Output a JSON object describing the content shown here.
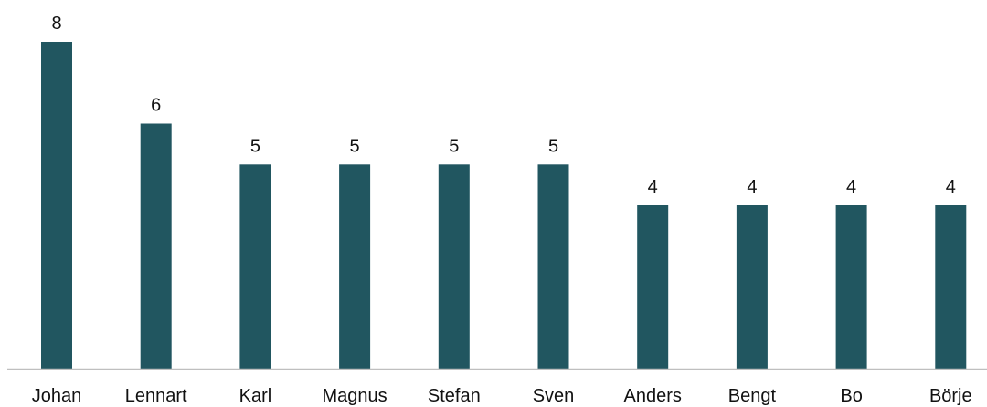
{
  "chart_data": {
    "type": "bar",
    "title": "",
    "xlabel": "",
    "ylabel": "",
    "categories": [
      "Johan",
      "Lennart",
      "Karl",
      "Magnus",
      "Stefan",
      "Sven",
      "Anders",
      "Bengt",
      "Bo",
      "Börje"
    ],
    "values": [
      8,
      6,
      5,
      5,
      5,
      5,
      4,
      4,
      4,
      4
    ],
    "ylim": [
      0,
      8
    ],
    "grid": false,
    "legend": "none",
    "data_labels": true,
    "bar_color": "#215660",
    "axis_color": "#bfbfbf"
  }
}
